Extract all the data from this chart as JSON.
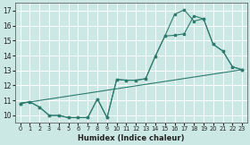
{
  "xlabel": "Humidex (Indice chaleur)",
  "background_color": "#cce8e4",
  "grid_color": "#ffffff",
  "line_color": "#2d7a6e",
  "xlim": [
    -0.5,
    23.5
  ],
  "ylim": [
    9.5,
    17.5
  ],
  "yticks": [
    10,
    11,
    12,
    13,
    14,
    15,
    16,
    17
  ],
  "xticks": [
    0,
    1,
    2,
    3,
    4,
    5,
    6,
    7,
    8,
    9,
    10,
    11,
    12,
    13,
    14,
    15,
    16,
    17,
    18,
    19,
    20,
    21,
    22,
    23
  ],
  "line_peak": {
    "x": [
      0,
      1,
      2,
      3,
      4,
      5,
      6,
      7,
      8,
      9,
      10,
      11,
      12,
      13,
      14,
      15,
      16,
      17,
      18,
      19,
      20,
      21,
      22,
      23
    ],
    "y": [
      10.8,
      10.9,
      10.55,
      10.0,
      10.0,
      9.85,
      9.85,
      9.85,
      11.1,
      9.85,
      12.4,
      12.35,
      12.35,
      12.45,
      13.95,
      15.3,
      16.75,
      17.05,
      16.3,
      16.45,
      14.75,
      14.3,
      13.25,
      13.05
    ]
  },
  "line_mid": {
    "x": [
      0,
      1,
      2,
      3,
      4,
      5,
      6,
      7,
      8,
      9,
      10,
      11,
      12,
      13,
      14,
      15,
      16,
      17,
      18,
      19,
      20,
      21,
      22,
      23
    ],
    "y": [
      10.8,
      10.9,
      10.55,
      10.0,
      10.0,
      9.85,
      9.85,
      9.85,
      11.1,
      9.85,
      12.4,
      12.35,
      12.35,
      12.45,
      13.95,
      15.3,
      15.35,
      15.45,
      16.65,
      16.45,
      14.75,
      14.3,
      13.25,
      13.05
    ]
  },
  "line_straight": {
    "x": [
      0,
      23
    ],
    "y": [
      10.8,
      13.05
    ]
  }
}
